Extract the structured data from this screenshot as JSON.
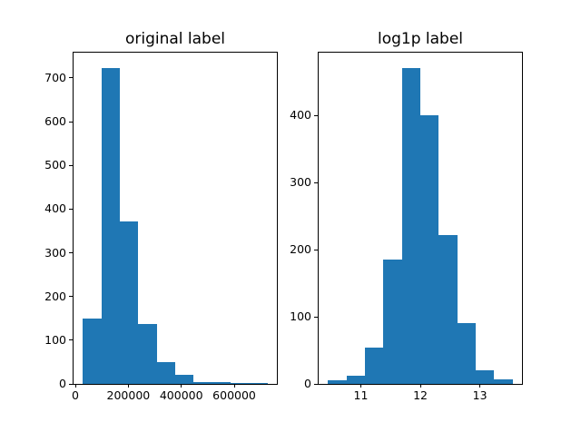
{
  "figure": {
    "background_color": "#ffffff",
    "text_color": "#000000",
    "spine_color": "#000000",
    "accent_color": "#1f77b4"
  },
  "chart_data": [
    {
      "type": "bar",
      "subtype": "histogram",
      "title": "original label",
      "bar_color": "#1f77b4",
      "grid": false,
      "legend_position": "none",
      "bin_edges": [
        28000,
        97800,
        167600,
        237400,
        307200,
        377000,
        446800,
        516600,
        586400,
        656200,
        726000
      ],
      "counts": [
        150,
        722,
        371,
        137,
        50,
        20,
        4,
        4,
        2,
        2
      ],
      "xlim": [
        -7000,
        761000
      ],
      "ylim": [
        0,
        758.1
      ],
      "xticks": {
        "values": [
          0,
          200000,
          400000,
          600000
        ],
        "labels": [
          "0",
          "200000",
          "400000",
          "600000"
        ]
      },
      "yticks": {
        "values": [
          0,
          100,
          200,
          300,
          400,
          500,
          600,
          700
        ],
        "labels": [
          "0",
          "100",
          "200",
          "300",
          "400",
          "500",
          "600",
          "700"
        ]
      }
    },
    {
      "type": "bar",
      "subtype": "histogram",
      "title": "log1p label",
      "bar_color": "#1f77b4",
      "grid": false,
      "legend_position": "none",
      "bin_edges": [
        10.446,
        10.7566,
        11.0672,
        11.3778,
        11.6884,
        11.999,
        12.3096,
        12.6202,
        12.9308,
        13.2414,
        13.552
      ],
      "counts": [
        6,
        12,
        54,
        185,
        470,
        400,
        222,
        90,
        20,
        7
      ],
      "xlim": [
        10.291,
        13.707
      ],
      "ylim": [
        0,
        493.5
      ],
      "xticks": {
        "values": [
          11,
          12,
          13
        ],
        "labels": [
          "11",
          "12",
          "13"
        ]
      },
      "yticks": {
        "values": [
          0,
          100,
          200,
          300,
          400
        ],
        "labels": [
          "0",
          "100",
          "200",
          "300",
          "400"
        ]
      }
    }
  ]
}
